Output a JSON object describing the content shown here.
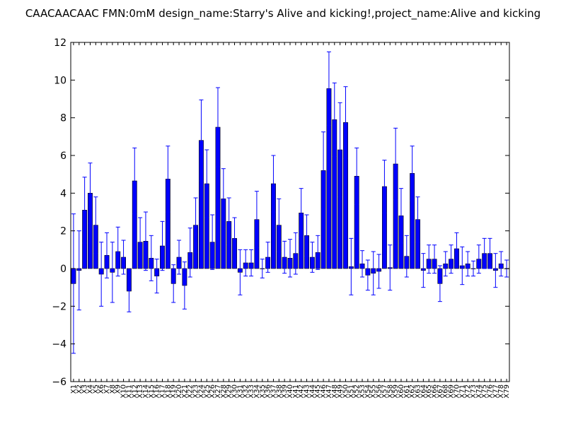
{
  "chart_data": {
    "type": "bar",
    "title": "CAACAACAAC  FMN:0mM  design_name:Starry's Alive and kicking!,project_name:Alive and kicking",
    "xlabel": "",
    "ylabel": "",
    "ylim": [
      -6,
      12
    ],
    "yticks": [
      -6,
      -4,
      -2,
      0,
      2,
      4,
      6,
      8,
      10,
      12
    ],
    "grid": false,
    "bar_color": "#0000ff",
    "error_color": "#0000ff",
    "categories": [
      "X1",
      "X2",
      "X3",
      "X4",
      "X5",
      "X6",
      "X7",
      "X8",
      "X9",
      "X10",
      "X11",
      "X12",
      "X13",
      "X14",
      "X15",
      "X16",
      "X17",
      "X18",
      "X19",
      "X20",
      "X21",
      "X22",
      "X23",
      "X24",
      "X25",
      "X26",
      "X27",
      "X28",
      "X29",
      "X30",
      "X31",
      "X32",
      "X33",
      "X34",
      "X35",
      "X36",
      "X37",
      "X38",
      "X39",
      "X40",
      "X41",
      "X42",
      "X43",
      "X44",
      "X45",
      "X46",
      "X47",
      "X48",
      "X49",
      "X50",
      "X51",
      "X52",
      "X53",
      "X54",
      "X55",
      "X56",
      "X57",
      "X58",
      "X59",
      "X60",
      "X61",
      "X62",
      "X63",
      "X64",
      "X65",
      "X66",
      "X67",
      "X68",
      "X69",
      "X70",
      "X71",
      "X72",
      "X73",
      "X74",
      "X75",
      "X76",
      "X77",
      "X78",
      "X79"
    ],
    "tick_labels": [
      "X1",
      "X2",
      "X3",
      "X4",
      "X5",
      "X6",
      "X7",
      "X8",
      "X9",
      "X10",
      "X11",
      "X12",
      "X13",
      "X14",
      "X15",
      "X16",
      "X17",
      "X18",
      "X19",
      "X20",
      "X21",
      "X22",
      "X23",
      "X24",
      "X25",
      "X26",
      "X27",
      "X28",
      "X29",
      "X30",
      "X31",
      "X32",
      "X33",
      "X34",
      "X35",
      "X36",
      "X37",
      "X38",
      "X39",
      "X40",
      "X41",
      "X42",
      "X43",
      "X44",
      "X45",
      "X46",
      "X47",
      "X48",
      "X49",
      "X50",
      "X51",
      "X52",
      "X53",
      "X54",
      "X55",
      "X56",
      "X57",
      "X58",
      "X59",
      "X60",
      "X61",
      "X62",
      "X63",
      "X64",
      "X65",
      "X66",
      "X67",
      "X68",
      "X69",
      "X70",
      "X71",
      "X72",
      "X73",
      "X74",
      "X75",
      "X76",
      "X77",
      "X78",
      "X79"
    ],
    "values": [
      -0.8,
      -0.1,
      3.1,
      4.0,
      2.3,
      -0.3,
      0.7,
      -0.2,
      0.9,
      0.6,
      -1.2,
      4.65,
      1.4,
      1.45,
      0.55,
      -0.4,
      1.2,
      4.75,
      -0.8,
      0.6,
      -0.9,
      0.85,
      2.3,
      6.8,
      4.5,
      1.4,
      7.5,
      3.7,
      2.5,
      1.6,
      -0.2,
      0.3,
      0.3,
      2.6,
      0.0,
      0.6,
      4.5,
      2.3,
      0.6,
      0.55,
      0.8,
      2.95,
      1.75,
      0.6,
      0.85,
      5.2,
      9.55,
      7.9,
      6.3,
      7.75,
      0.1,
      4.9,
      0.25,
      -0.35,
      -0.25,
      -0.15,
      4.35,
      0.05,
      5.55,
      2.8,
      0.65,
      5.05,
      2.6,
      -0.1,
      0.5,
      0.5,
      -0.8,
      0.25,
      0.5,
      1.05,
      0.15,
      0.25,
      0.0,
      0.5,
      0.8,
      0.8,
      -0.1,
      0.25,
      0.0
    ],
    "errors": [
      3.7,
      2.1,
      1.75,
      1.6,
      1.5,
      1.7,
      1.2,
      1.6,
      1.3,
      0.9,
      1.1,
      1.75,
      1.3,
      1.55,
      1.2,
      0.9,
      1.3,
      1.75,
      1.0,
      0.9,
      1.25,
      1.3,
      1.45,
      2.15,
      1.8,
      1.45,
      2.1,
      1.6,
      1.25,
      1.1,
      1.2,
      0.7,
      0.7,
      1.5,
      0.5,
      0.8,
      1.5,
      1.4,
      0.85,
      1.0,
      1.1,
      1.3,
      1.1,
      0.8,
      0.9,
      2.05,
      1.95,
      1.95,
      2.5,
      1.9,
      1.5,
      1.5,
      0.7,
      0.8,
      1.15,
      0.9,
      1.4,
      1.2,
      1.9,
      1.45,
      1.1,
      1.45,
      1.2,
      0.9,
      0.75,
      0.75,
      0.95,
      0.65,
      0.75,
      0.85,
      1.0,
      0.65,
      0.4,
      0.75,
      0.8,
      0.8,
      0.9,
      0.65,
      0.45
    ]
  }
}
